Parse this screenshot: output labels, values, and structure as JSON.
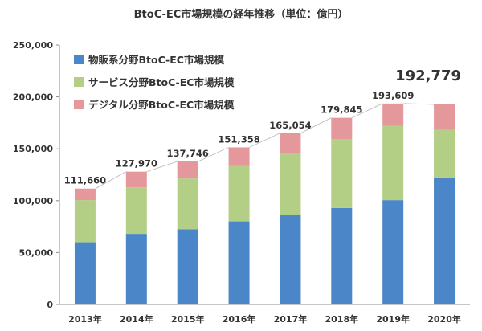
{
  "chart_data": {
    "type": "bar",
    "stacked": true,
    "title": "BtoC-EC市場規模の経年推移（単位：億円）",
    "xlabel": "",
    "ylabel": "",
    "categories": [
      "2013年",
      "2014年",
      "2015年",
      "2016年",
      "2017年",
      "2018年",
      "2019年",
      "2020年"
    ],
    "ylim": [
      0,
      250000
    ],
    "yticks": [
      0,
      50000,
      100000,
      150000,
      200000,
      250000
    ],
    "ytick_labels": [
      "0",
      "50,000",
      "100,000",
      "150,000",
      "200,000",
      "250,000"
    ],
    "grid": false,
    "legend_position": "top-left",
    "series": [
      {
        "name": "物販系分野BtoC-EC市場規模",
        "color": "#4a86c8",
        "values": [
          59931,
          68043,
          72398,
          80043,
          86008,
          92992,
          100515,
          122333
        ]
      },
      {
        "name": "サービス分野BtoC-EC市場規模",
        "color": "#b3cf86",
        "values": [
          40635,
          44816,
          49014,
          53532,
          59568,
          66471,
          71672,
          45832
        ]
      },
      {
        "name": "デジタル分野BtoC-EC市場規模",
        "color": "#e4989b",
        "values": [
          11094,
          15111,
          16334,
          17782,
          19478,
          20382,
          21422,
          24614
        ]
      }
    ],
    "totals": [
      111660,
      127970,
      137746,
      151358,
      165054,
      179845,
      193609,
      192779
    ],
    "total_labels": [
      "111,660",
      "127,970",
      "137,746",
      "151,358",
      "165,054",
      "179,845",
      "193,609",
      "192,779"
    ],
    "highlighted_total_index": 7
  }
}
